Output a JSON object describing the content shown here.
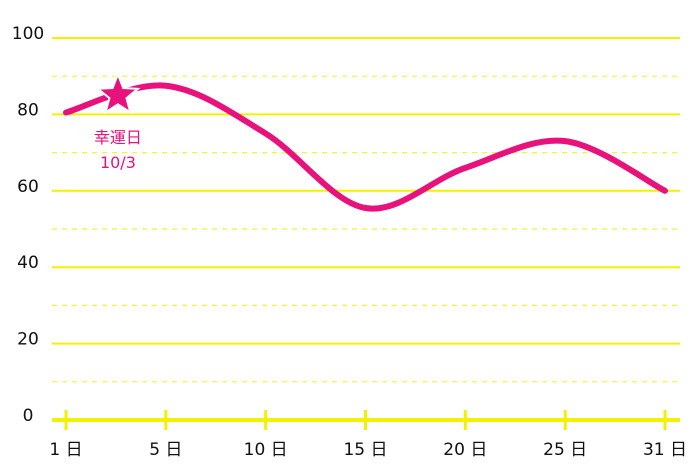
{
  "chart_data": {
    "type": "line",
    "categories": [
      "1 日",
      "5 日",
      "10 日",
      "15 日",
      "20 日",
      "25 日",
      "31 日"
    ],
    "series": [
      {
        "color": "#e8127c",
        "values": [
          80.5,
          87.5,
          75,
          55.5,
          66,
          73,
          60
        ]
      }
    ],
    "ylim": [
      0,
      100
    ],
    "yticks": [
      0,
      20,
      40,
      60,
      80,
      100
    ],
    "minor_grid": [
      10,
      30,
      50,
      70,
      90
    ],
    "grid_color": "#f2f200",
    "annotation": {
      "lines": [
        "幸運日",
        "10/3"
      ],
      "value": 85
    }
  }
}
